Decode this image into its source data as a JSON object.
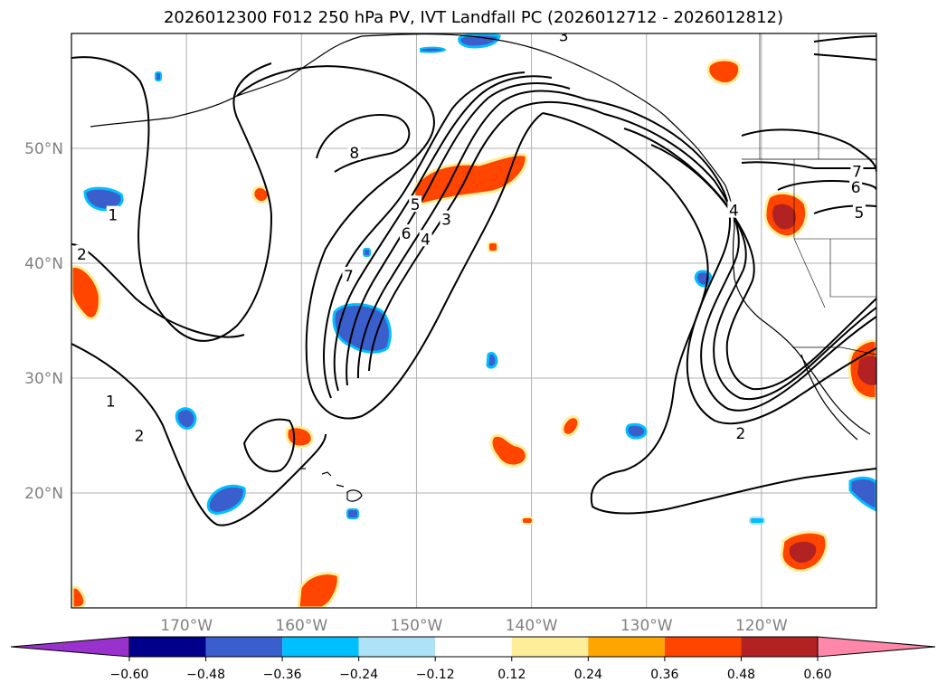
{
  "title": "2026012300 F012 250 hPa PV, IVT Landfall PC (2026012712 - 2026012812)",
  "map": {
    "projection": "equirectangular",
    "lon_range": [
      -180,
      -110
    ],
    "lat_range": [
      10,
      60
    ],
    "lon_ticks": [
      {
        "lon": -170,
        "label": "170°W"
      },
      {
        "lon": -160,
        "label": "160°W"
      },
      {
        "lon": -150,
        "label": "150°W"
      },
      {
        "lon": -140,
        "label": "140°W"
      },
      {
        "lon": -130,
        "label": "130°W"
      },
      {
        "lon": -120,
        "label": "120°W"
      }
    ],
    "lat_ticks": [
      {
        "lat": 20,
        "label": "20°N"
      },
      {
        "lat": 30,
        "label": "30°N"
      },
      {
        "lat": 40,
        "label": "40°N"
      },
      {
        "lat": 50,
        "label": "50°N"
      }
    ],
    "grid": true,
    "pv_contour_labels": [
      {
        "text": "8",
        "lon": -155.4,
        "lat": 49.6
      },
      {
        "text": "7",
        "lon": -155.9,
        "lat": 38.9
      },
      {
        "text": "6",
        "lon": -150.9,
        "lat": 42.6
      },
      {
        "text": "5",
        "lon": -150.1,
        "lat": 45.1
      },
      {
        "text": "4",
        "lon": -149.2,
        "lat": 42.1
      },
      {
        "text": "3",
        "lon": -147.4,
        "lat": 43.8
      },
      {
        "text": "1",
        "lon": -176.4,
        "lat": 44.2
      },
      {
        "text": "2",
        "lon": -179.1,
        "lat": 40.8
      },
      {
        "text": "1",
        "lon": -176.6,
        "lat": 28.0
      },
      {
        "text": "2",
        "lon": -174.1,
        "lat": 25.0
      },
      {
        "text": "2",
        "lon": -121.8,
        "lat": 25.2
      },
      {
        "text": "4",
        "lon": -122.4,
        "lat": 44.6
      },
      {
        "text": "7",
        "lon": -111.7,
        "lat": 48.0
      },
      {
        "text": "6",
        "lon": -111.8,
        "lat": 46.6
      },
      {
        "text": "5",
        "lon": -111.5,
        "lat": 44.4
      },
      {
        "text": "3",
        "lon": -137.2,
        "lat": 59.8
      }
    ]
  },
  "colorbar": {
    "levels": [
      -0.6,
      -0.48,
      -0.36,
      -0.24,
      -0.12,
      0.12,
      0.24,
      0.36,
      0.48,
      0.6
    ],
    "labels": [
      "−0.60",
      "−0.48",
      "−0.36",
      "−0.24",
      "−0.12",
      "0.12",
      "0.24",
      "0.36",
      "0.48",
      "0.60"
    ],
    "colors": [
      "#9932CC",
      "#00008B",
      "#3A5FCD",
      "#00BFFF",
      "#ADE2F7",
      "#FFFFFF",
      "#FFEE99",
      "#FFA500",
      "#FF4500",
      "#B22222",
      "#FF88AA"
    ],
    "extend": "both"
  }
}
